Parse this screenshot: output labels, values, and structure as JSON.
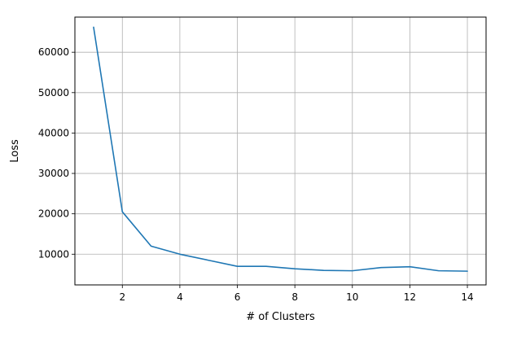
{
  "chart_data": {
    "type": "line",
    "title": "",
    "xlabel": "# of Clusters",
    "ylabel": "Loss",
    "xlim": [
      0.35,
      14.65
    ],
    "ylim": [
      2400,
      68700
    ],
    "xticks": [
      2,
      4,
      6,
      8,
      10,
      12,
      14
    ],
    "yticks": [
      10000,
      20000,
      30000,
      40000,
      50000,
      60000
    ],
    "grid": true,
    "series": [
      {
        "color": "#1f77b4",
        "x": [
          1,
          2,
          3,
          4,
          5,
          6,
          7,
          8,
          9,
          10,
          11,
          12,
          13,
          14
        ],
        "y": [
          66200,
          20500,
          12000,
          10000,
          8500,
          7000,
          7000,
          6400,
          6000,
          5900,
          6700,
          6900,
          5900,
          5800
        ]
      }
    ]
  }
}
